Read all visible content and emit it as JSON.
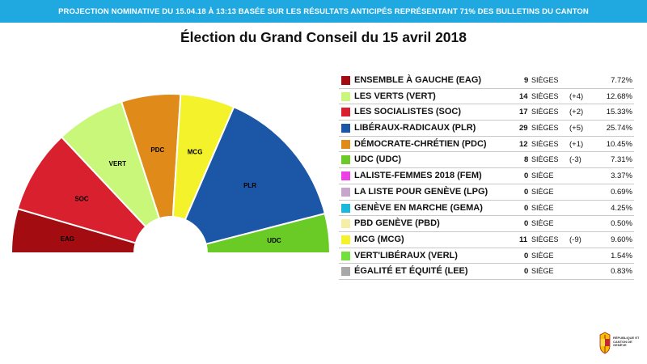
{
  "banner": "PROJECTION NOMINATIVE DU 15.04.18 À 13:13 BASÉE SUR LES RÉSULTATS ANTICIPÉS REPRÉSENTANT 71% DES BULLETINS DU CANTON",
  "chart_data": {
    "type": "pie",
    "variant": "parliament-semicircle",
    "title": "Élection du Grand Conseil du 15 avril 2018",
    "total_seats": 100,
    "series": [
      {
        "label": "EAG",
        "seats": 9,
        "color": "#a30d12"
      },
      {
        "label": "SOC",
        "seats": 17,
        "color": "#d8202e"
      },
      {
        "label": "VERT",
        "seats": 14,
        "color": "#c9f77a"
      },
      {
        "label": "PDC",
        "seats": 12,
        "color": "#e08b19"
      },
      {
        "label": "MCG",
        "seats": 11,
        "color": "#f4f22b"
      },
      {
        "label": "PLR",
        "seats": 29,
        "color": "#1c56a6"
      },
      {
        "label": "UDC",
        "seats": 8,
        "color": "#6acb26"
      }
    ]
  },
  "results": [
    {
      "name": "ENSEMBLE À GAUCHE (EAG)",
      "seats": "9",
      "seat_label": "SIÈGES",
      "diff": "",
      "pct": "7.72%",
      "color": "#a30d12"
    },
    {
      "name": "LES VERTS (VERT)",
      "seats": "14",
      "seat_label": "SIÈGES",
      "diff": "(+4)",
      "pct": "12.68%",
      "color": "#c9f77a"
    },
    {
      "name": "LES SOCIALISTES (SOC)",
      "seats": "17",
      "seat_label": "SIÈGES",
      "diff": "(+2)",
      "pct": "15.33%",
      "color": "#d8202e"
    },
    {
      "name": "LIBÉRAUX-RADICAUX (PLR)",
      "seats": "29",
      "seat_label": "SIÈGES",
      "diff": "(+5)",
      "pct": "25.74%",
      "color": "#1c56a6"
    },
    {
      "name": "DÉMOCRATE-CHRÉTIEN (PDC)",
      "seats": "12",
      "seat_label": "SIÈGES",
      "diff": "(+1)",
      "pct": "10.45%",
      "color": "#e08b19"
    },
    {
      "name": "UDC (UDC)",
      "seats": "8",
      "seat_label": "SIÈGES",
      "diff": "(-3)",
      "pct": "7.31%",
      "color": "#6acb26"
    },
    {
      "name": "LALISTE-FEMMES 2018 (FEM)",
      "seats": "0",
      "seat_label": "SIÈGE",
      "diff": "",
      "pct": "3.37%",
      "color": "#ee3fe6"
    },
    {
      "name": "LA LISTE POUR GENÈVE (LPG)",
      "seats": "0",
      "seat_label": "SIÈGE",
      "diff": "",
      "pct": "0.69%",
      "color": "#c7a6cc"
    },
    {
      "name": "GENÈVE EN MARCHE (GEMA)",
      "seats": "0",
      "seat_label": "SIÈGE",
      "diff": "",
      "pct": "4.25%",
      "color": "#1bb8de"
    },
    {
      "name": "PBD GENÈVE (PBD)",
      "seats": "0",
      "seat_label": "SIÈGE",
      "diff": "",
      "pct": "0.50%",
      "color": "#f6eea6"
    },
    {
      "name": "MCG (MCG)",
      "seats": "11",
      "seat_label": "SIÈGES",
      "diff": "(-9)",
      "pct": "9.60%",
      "color": "#f4f22b"
    },
    {
      "name": "VERT'LIBÉRAUX (VERL)",
      "seats": "0",
      "seat_label": "SIÈGE",
      "diff": "",
      "pct": "1.54%",
      "color": "#74e03b"
    },
    {
      "name": "ÉGALITÉ ET ÉQUITÉ (LEE)",
      "seats": "0",
      "seat_label": "SIÈGE",
      "diff": "",
      "pct": "0.83%",
      "color": "#a8a8a8"
    }
  ],
  "logo": {
    "text": "RÉPUBLIQUE ET CANTON DE GENÈVE"
  }
}
